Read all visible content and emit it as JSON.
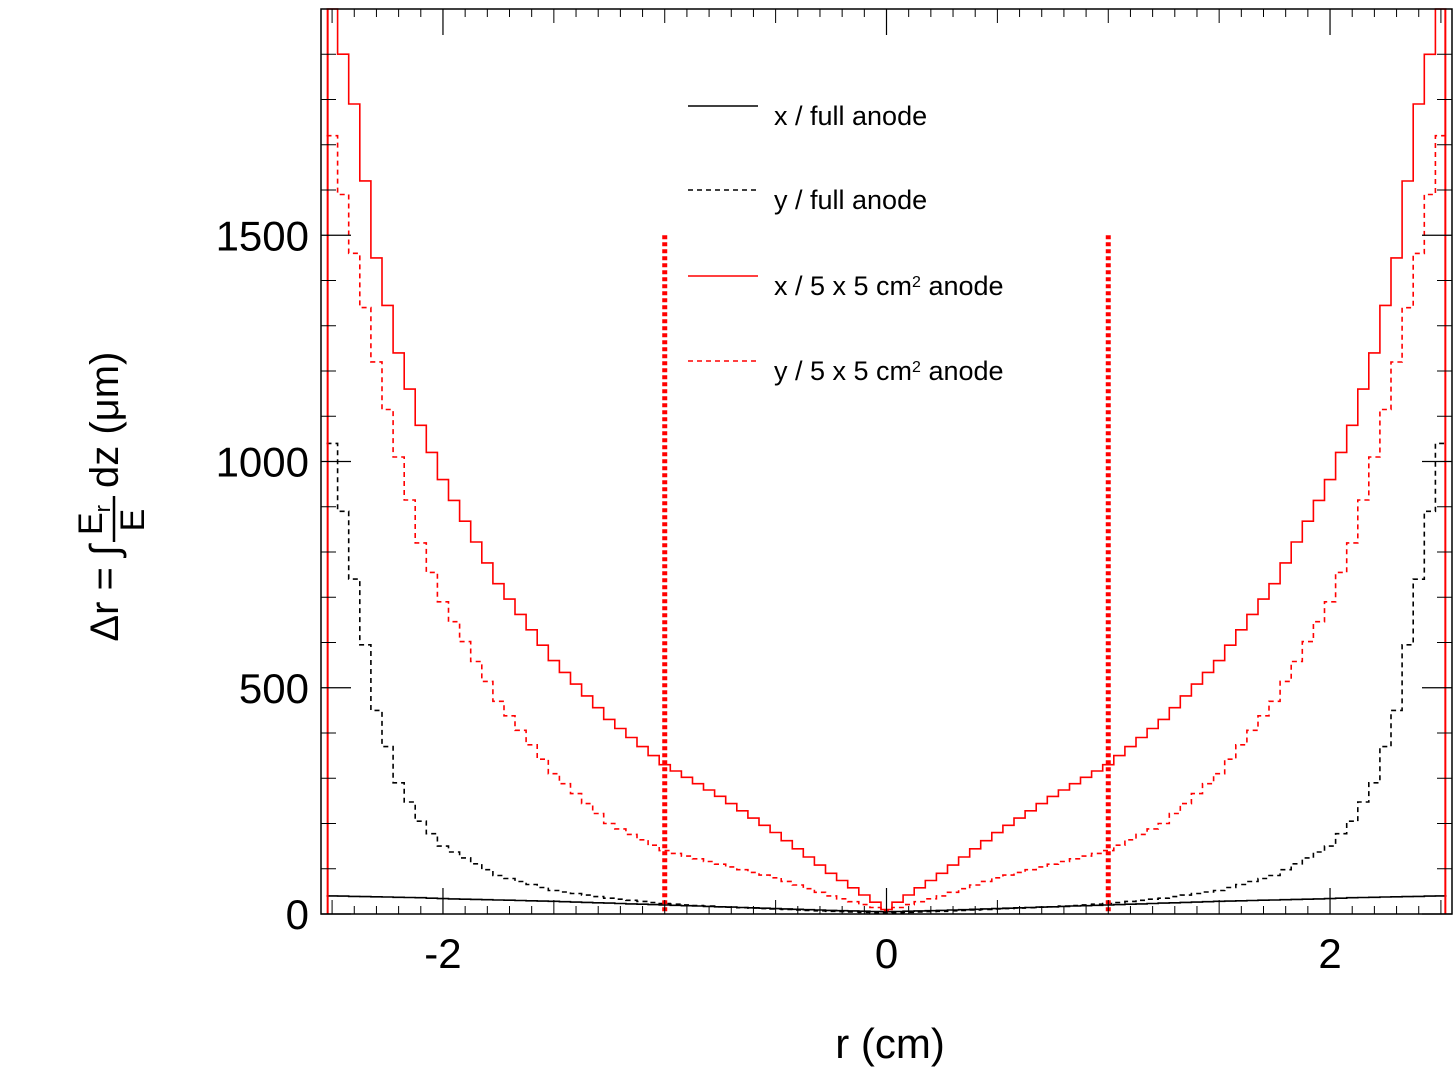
{
  "chart_data": {
    "type": "line",
    "step": true,
    "xlabel": "r (cm)",
    "ylabel_prefix": "Δr = ∫",
    "ylabel_fraction_numerator": "E",
    "ylabel_fraction_numerator_sub": "r",
    "ylabel_fraction_denominator": "E",
    "ylabel_suffix": "dz (μm)",
    "xlim": [
      -2.55,
      2.55
    ],
    "ylim": [
      0,
      2000
    ],
    "x_ticks": [
      -2,
      0,
      2
    ],
    "x_tick_labels": [
      "-2",
      "0",
      "2"
    ],
    "y_ticks": [
      0,
      500,
      1000,
      1500
    ],
    "y_tick_labels": [
      "0",
      "500",
      "1000",
      "1500"
    ],
    "legend_position": "top-center",
    "bin_width": 0.05,
    "r_samples": [
      0.0,
      0.25,
      0.5,
      0.75,
      1.0,
      1.25,
      1.5,
      1.75,
      2.0,
      2.1,
      2.2,
      2.3,
      2.4,
      2.5,
      2.55
    ],
    "series": [
      {
        "name": "x / full anode",
        "label_main": "x / full anode",
        "label_sup": "",
        "label_tail": "",
        "color": "#000000",
        "dash": "solid",
        "values": [
          5,
          8,
          12,
          16,
          20,
          24,
          28,
          31,
          34,
          36,
          37,
          38,
          39,
          40,
          41
        ]
      },
      {
        "name": "y / full anode",
        "label_main": "y / full anode",
        "label_sup": "",
        "label_tail": "",
        "color": "#000000",
        "dash": "dashed",
        "values": [
          2,
          6,
          11,
          16,
          23,
          35,
          52,
          85,
          150,
          205,
          290,
          450,
          740,
          1040,
          1040
        ]
      },
      {
        "name": "x / 5 x 5 cm2 anode",
        "label_main": "x / 5 x 5 cm",
        "label_sup": "2",
        "label_tail": " anode",
        "color": "#ff0000",
        "dash": "solid",
        "values": [
          10,
          90,
          180,
          260,
          330,
          430,
          560,
          730,
          960,
          1080,
          1240,
          1450,
          1790,
          2010,
          2010
        ]
      },
      {
        "name": "y / 5 x 5 cm2 anode",
        "label_main": "y / 5 x 5 cm",
        "label_sup": "2",
        "label_tail": " anode",
        "color": "#ff0000",
        "dash": "dashed",
        "values": [
          8,
          40,
          80,
          110,
          140,
          200,
          310,
          470,
          690,
          820,
          1010,
          1220,
          1460,
          1720,
          1720
        ]
      }
    ],
    "vertical_markers": [
      {
        "x": -1.0,
        "y_top": 1500,
        "color": "#ff0000",
        "style": "dotted"
      },
      {
        "x": 1.0,
        "y_top": 1500,
        "color": "#ff0000",
        "style": "dotted"
      }
    ],
    "edge_lines": [
      {
        "x": -2.52,
        "color": "#ff0000"
      },
      {
        "x": 2.52,
        "color": "#ff0000"
      }
    ]
  }
}
